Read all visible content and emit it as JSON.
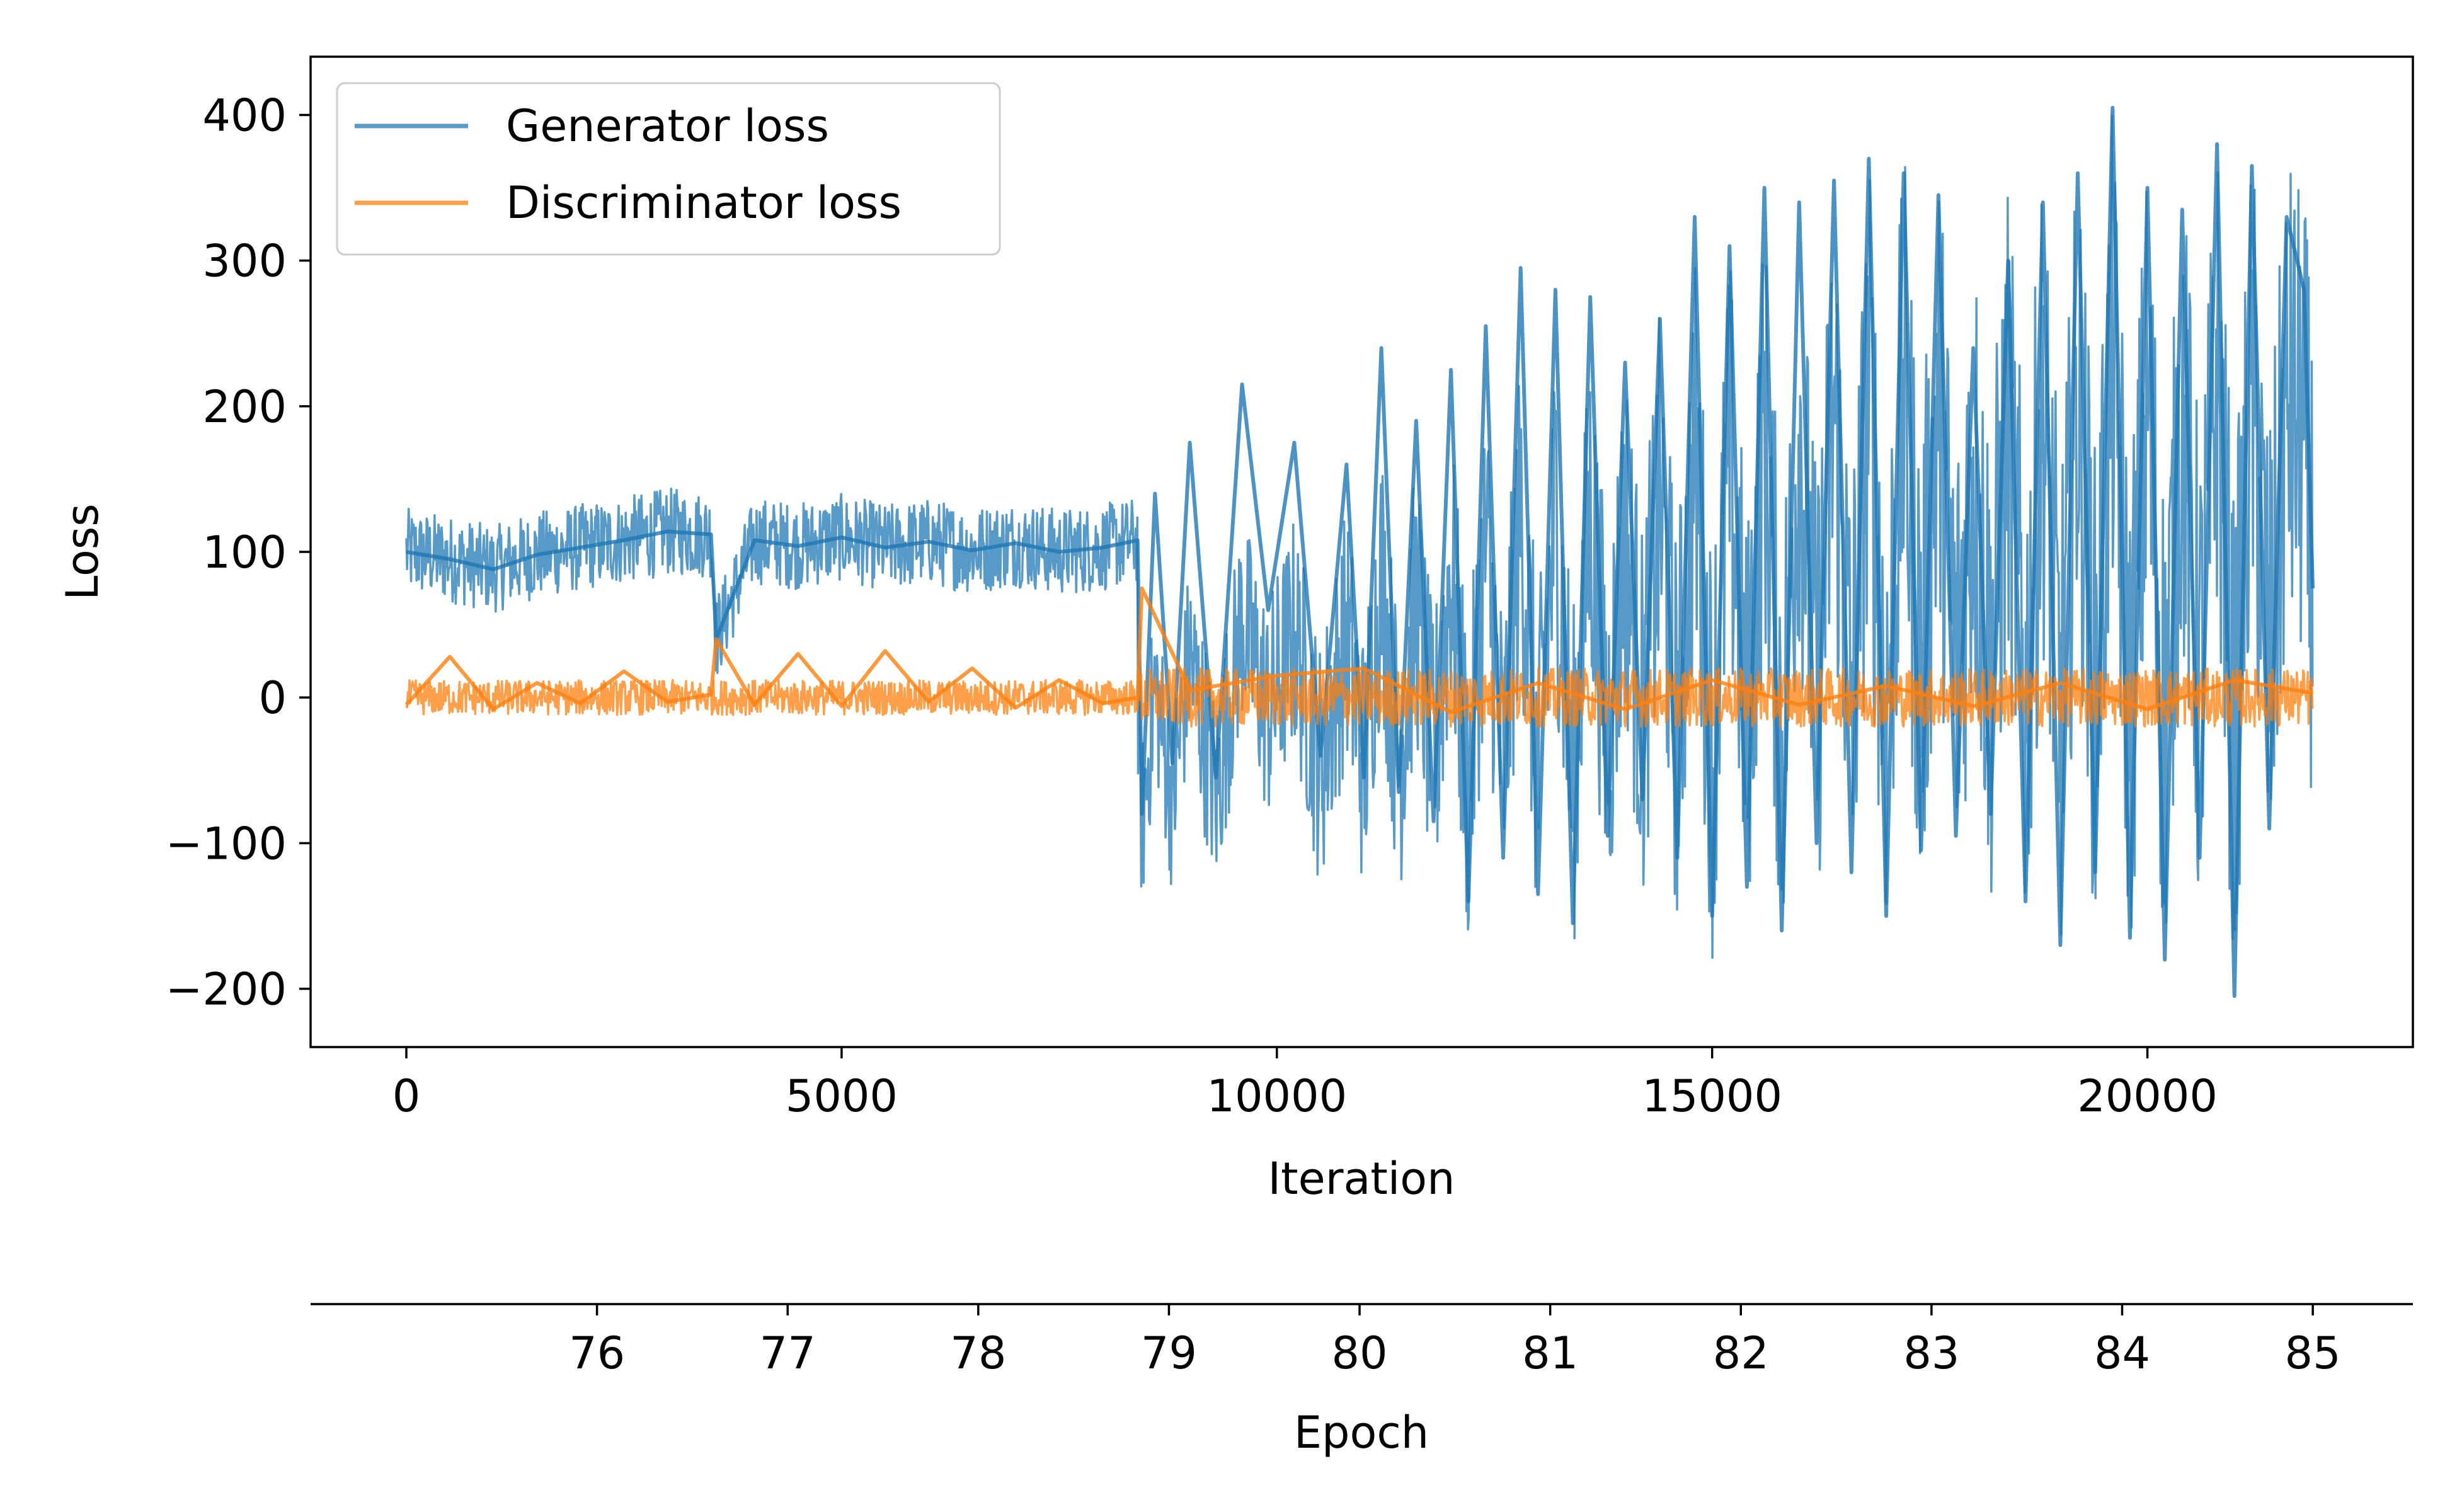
{
  "chart_data": {
    "type": "line",
    "xlabel": "Iteration",
    "ylabel": "Loss",
    "xlim": [
      -1100,
      23050
    ],
    "ylim": [
      -240,
      440
    ],
    "grid": false,
    "legend_position": "top-left",
    "x_ticks": [
      0,
      5000,
      10000,
      15000,
      20000
    ],
    "x_tick_labels": [
      "0",
      "5000",
      "10000",
      "15000",
      "20000"
    ],
    "y_ticks": [
      -200,
      -100,
      0,
      100,
      200,
      300,
      400
    ],
    "y_tick_labels": [
      "−200",
      "−100",
      "0",
      "100",
      "200",
      "300",
      "400"
    ],
    "secondary_x_axis": {
      "label": "Epoch",
      "position": "bottom",
      "ticks": [
        76,
        77,
        78,
        79,
        80,
        81,
        82,
        83,
        84,
        85
      ],
      "tick_labels": [
        "76",
        "77",
        "78",
        "79",
        "80",
        "81",
        "82",
        "83",
        "84",
        "85"
      ],
      "epoch_85_at_iteration": 21900,
      "iterations_per_epoch": 2190
    },
    "series": [
      {
        "name": "Generator loss",
        "color": "#1f77b4",
        "x": [
          0,
          500,
          1000,
          1500,
          2000,
          2500,
          3000,
          3500,
          3560,
          4000,
          4500,
          5000,
          5500,
          6000,
          6500,
          7000,
          7500,
          8000,
          8400,
          8450,
          8600,
          8800,
          9000,
          9300,
          9600,
          9900,
          10200,
          10500,
          10800,
          11000,
          11200,
          11400,
          11600,
          11800,
          12000,
          12200,
          12400,
          12600,
          12800,
          13000,
          13200,
          13400,
          13600,
          13800,
          14000,
          14200,
          14400,
          14600,
          14800,
          15000,
          15200,
          15400,
          15600,
          15800,
          16000,
          16200,
          16400,
          16600,
          16800,
          17000,
          17200,
          17400,
          17600,
          17800,
          18000,
          18200,
          18400,
          18600,
          18800,
          19000,
          19200,
          19400,
          19600,
          19800,
          20000,
          20200,
          20400,
          20600,
          20800,
          21000,
          21200,
          21400,
          21600,
          21800,
          21900
        ],
        "y": [
          100,
          95,
          88,
          98,
          103,
          108,
          114,
          112,
          40,
          108,
          104,
          110,
          103,
          107,
          101,
          106,
          100,
          103,
          108,
          -80,
          140,
          -45,
          175,
          -55,
          215,
          60,
          175,
          -40,
          160,
          -55,
          240,
          -65,
          190,
          -85,
          225,
          -140,
          255,
          -110,
          295,
          -135,
          280,
          -155,
          275,
          -95,
          230,
          -70,
          260,
          -110,
          330,
          -150,
          310,
          -130,
          350,
          -160,
          340,
          -100,
          355,
          -120,
          370,
          -150,
          360,
          -105,
          345,
          -95,
          240,
          -80,
          300,
          -140,
          340,
          -170,
          360,
          -120,
          405,
          -165,
          350,
          -180,
          335,
          -110,
          380,
          -205,
          365,
          -90,
          330,
          280,
          75
        ],
        "band_envelope": [
          {
            "x_from": 0,
            "x_to": 8400,
            "low": 60,
            "high": 135
          },
          {
            "x_from": 8400,
            "x_to": 21900,
            "low": -210,
            "high": 410
          }
        ]
      },
      {
        "name": "Discriminator loss",
        "color": "#ff7f0e",
        "x": [
          0,
          500,
          1000,
          1500,
          2000,
          2500,
          3000,
          3500,
          3560,
          4000,
          4500,
          5000,
          5500,
          6000,
          6500,
          7000,
          7500,
          8000,
          8400,
          8450,
          9000,
          10000,
          11000,
          12000,
          13000,
          14000,
          15000,
          16000,
          17000,
          18000,
          19000,
          20000,
          21000,
          21900
        ],
        "y": [
          -5,
          28,
          -8,
          10,
          -4,
          18,
          -3,
          2,
          40,
          -5,
          30,
          -6,
          32,
          -3,
          20,
          -7,
          12,
          -4,
          0,
          75,
          5,
          15,
          20,
          -10,
          10,
          -8,
          12,
          -5,
          8,
          -6,
          10,
          -8,
          12,
          3
        ],
        "band_envelope": [
          {
            "x_from": 0,
            "x_to": 8400,
            "low": -15,
            "high": 15
          },
          {
            "x_from": 8400,
            "x_to": 21900,
            "low": -25,
            "high": 25
          }
        ]
      }
    ]
  }
}
